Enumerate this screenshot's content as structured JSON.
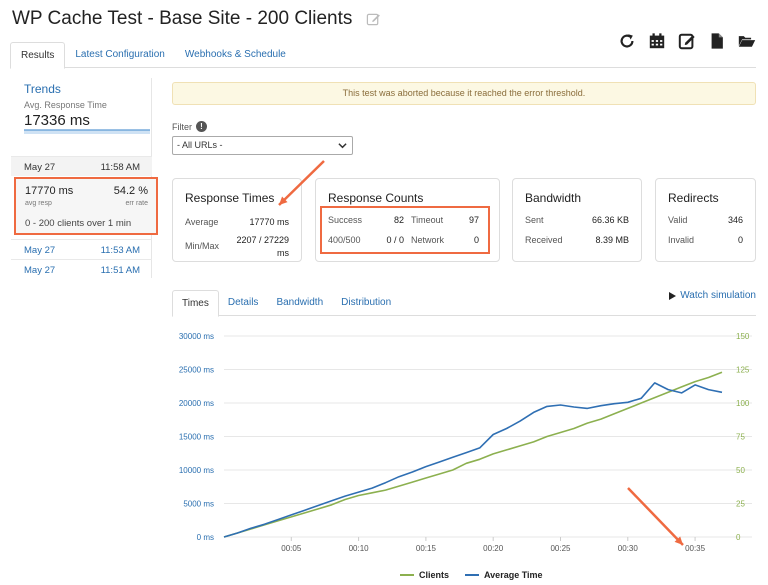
{
  "page": {
    "title": "WP Cache Test - Base Site - 200 Clients",
    "tabs": [
      "Results",
      "Latest Configuration",
      "Webhooks & Schedule"
    ],
    "toolbar_icons": [
      "refresh-icon",
      "calendar-icon",
      "edit-icon",
      "file-icon",
      "folder-open-icon"
    ]
  },
  "sidebar": {
    "trends_title": "Trends",
    "trends_sub": "Avg. Response Time",
    "trends_value": "17336 ms",
    "selected_run": {
      "date": "May 27",
      "time": "11:58 AM",
      "avg_resp_value": "17770 ms",
      "avg_resp_label": "avg resp",
      "err_rate_value": "54.2 %",
      "err_rate_label": "err rate",
      "clients_text": "0  -  200 clients over 1 min"
    },
    "runs": [
      {
        "date": "May 27",
        "time": "11:53 AM"
      },
      {
        "date": "May 27",
        "time": "11:51 AM"
      }
    ]
  },
  "alert": {
    "text": "This test was aborted because it reached the error threshold."
  },
  "filter": {
    "label": "Filter",
    "value": "- All URLs -"
  },
  "cards": {
    "response_times": {
      "title": "Response Times",
      "average_label": "Average",
      "average_value": "17770 ms",
      "minmax_label": "Min/Max",
      "minmax_value": "2207 / 27229",
      "minmax_unit": "ms"
    },
    "response_counts": {
      "title": "Response Counts",
      "success_label": "Success",
      "success_value": "82",
      "timeout_label": "Timeout",
      "timeout_value": "97",
      "status_label": "400/500",
      "status_value": "0 / 0",
      "network_label": "Network",
      "network_value": "0"
    },
    "bandwidth": {
      "title": "Bandwidth",
      "sent_label": "Sent",
      "sent_value": "66.36 KB",
      "received_label": "Received",
      "received_value": "8.39 MB"
    },
    "redirects": {
      "title": "Redirects",
      "valid_label": "Valid",
      "valid_value": "346",
      "invalid_label": "Invalid",
      "invalid_value": "0"
    }
  },
  "chart_tabs": [
    "Times",
    "Details",
    "Bandwidth",
    "Distribution"
  ],
  "watch_label": "Watch simulation",
  "colors": {
    "accent": "#2a6fb0",
    "highlight": "#ef6a41",
    "clients": "#8cb04f",
    "avg_time": "#2f6fb3"
  },
  "chart_data": {
    "type": "line",
    "x": [
      "00:00",
      "00:01",
      "00:02",
      "00:03",
      "00:04",
      "00:05",
      "00:06",
      "00:07",
      "00:08",
      "00:09",
      "00:10",
      "00:11",
      "00:12",
      "00:13",
      "00:14",
      "00:15",
      "00:16",
      "00:17",
      "00:18",
      "00:19",
      "00:20",
      "00:21",
      "00:22",
      "00:23",
      "00:24",
      "00:25",
      "00:26",
      "00:27",
      "00:28",
      "00:29",
      "00:30",
      "00:31",
      "00:32",
      "00:33",
      "00:34",
      "00:35",
      "00:36",
      "00:37"
    ],
    "x_ticks": [
      "00:05",
      "00:10",
      "00:15",
      "00:20",
      "00:25",
      "00:30",
      "00:35"
    ],
    "y_left_ticks": [
      "0 ms",
      "5000 ms",
      "10000 ms",
      "15000 ms",
      "20000 ms",
      "25000 ms",
      "30000 ms"
    ],
    "y_right_ticks": [
      "0",
      "25",
      "50",
      "75",
      "100",
      "125",
      "150"
    ],
    "y_left_range": [
      0,
      30000
    ],
    "y_right_range": [
      0,
      150
    ],
    "series": [
      {
        "name": "Clients",
        "axis": "right",
        "values": [
          0,
          3,
          6,
          9,
          12,
          15,
          18,
          21,
          24,
          28,
          31,
          33,
          35,
          38,
          41,
          44,
          47,
          50,
          55,
          58,
          62,
          65,
          68,
          71,
          75,
          78,
          81,
          85,
          88,
          92,
          96,
          100,
          104,
          108,
          112,
          116,
          119,
          123
        ]
      },
      {
        "name": "Average Time",
        "axis": "left",
        "values": [
          0,
          600,
          1300,
          1900,
          2600,
          3300,
          4000,
          4700,
          5400,
          6100,
          6700,
          7300,
          8100,
          9000,
          9700,
          10500,
          11200,
          11900,
          12600,
          13300,
          15300,
          16200,
          17300,
          18600,
          19500,
          19700,
          19400,
          19200,
          19600,
          19900,
          20100,
          20700,
          23000,
          22000,
          21500,
          22700,
          22000,
          21600
        ]
      }
    ]
  }
}
